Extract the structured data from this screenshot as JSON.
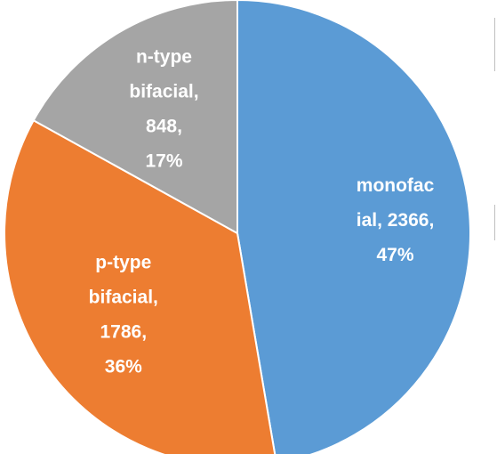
{
  "chart_data": {
    "type": "pie",
    "title": "",
    "slices": [
      {
        "name": "monofacial",
        "value": 2366,
        "percent": 47,
        "color": "#5b9bd5",
        "label_lines": [
          "monofac",
          "ial, 2366,",
          "47%"
        ]
      },
      {
        "name": "p-type bifacial",
        "value": 1786,
        "percent": 36,
        "color": "#ed7d31",
        "label_lines": [
          "p-type",
          "bifacial,",
          "1786,",
          "36%"
        ]
      },
      {
        "name": "n-type bifacial",
        "value": 848,
        "percent": 17,
        "color": "#a5a5a5",
        "label_lines": [
          "n-type",
          "bifacial,",
          "848,",
          "17%"
        ]
      }
    ],
    "start_angle_deg": 0,
    "direction": "clockwise",
    "legend": "none"
  }
}
